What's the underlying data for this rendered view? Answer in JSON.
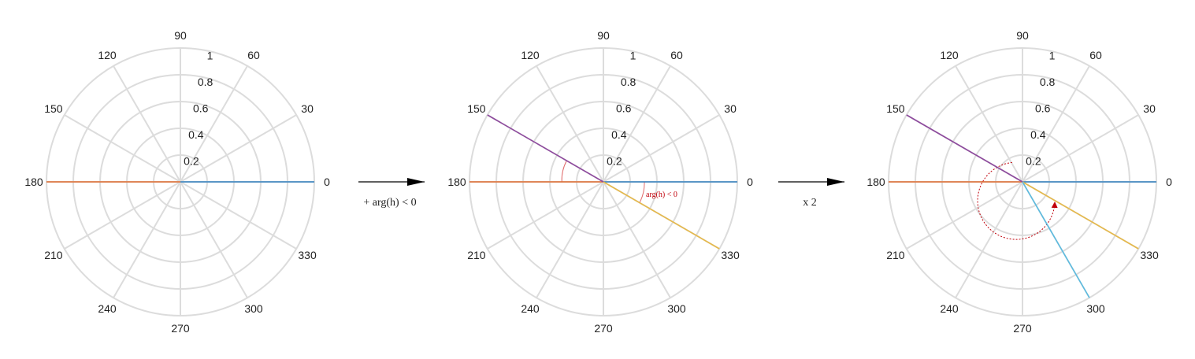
{
  "colors": {
    "grid": "#dcdcdc",
    "text": "#222222",
    "blue": "#2e7ebf",
    "orange": "#e06a2c",
    "purple": "#8e4a9e",
    "yellow": "#e6b94a",
    "cyan": "#5bbbe0",
    "annotation": "#c0000a",
    "arrow": "#000000"
  },
  "angle_labels": [
    "0",
    "30",
    "60",
    "90",
    "120",
    "150",
    "180",
    "210",
    "240",
    "270",
    "300",
    "330"
  ],
  "radial_labels": [
    "0.2",
    "0.4",
    "0.6",
    "0.8",
    "1"
  ],
  "panels": [
    {
      "vectors": [
        {
          "angle_deg": 0,
          "magnitude": 1,
          "color": "blue"
        },
        {
          "angle_deg": 180,
          "magnitude": 1,
          "color": "orange"
        }
      ]
    },
    {
      "vectors": [
        {
          "angle_deg": 0,
          "magnitude": 1,
          "color": "blue"
        },
        {
          "angle_deg": 180,
          "magnitude": 1,
          "color": "orange"
        },
        {
          "angle_deg": 150,
          "magnitude": 1,
          "color": "purple"
        },
        {
          "angle_deg": 330,
          "magnitude": 1,
          "color": "yellow"
        }
      ],
      "annotation": "arg(h) < 0"
    },
    {
      "vectors": [
        {
          "angle_deg": 0,
          "magnitude": 1,
          "color": "blue"
        },
        {
          "angle_deg": 180,
          "magnitude": 1,
          "color": "orange"
        },
        {
          "angle_deg": 150,
          "magnitude": 1,
          "color": "purple"
        },
        {
          "angle_deg": 330,
          "magnitude": 1,
          "color": "yellow"
        },
        {
          "angle_deg": 300,
          "magnitude": 1,
          "color": "cyan"
        }
      ]
    }
  ],
  "transitions": [
    {
      "label": "+ arg(h) < 0"
    },
    {
      "label": "x 2"
    }
  ]
}
